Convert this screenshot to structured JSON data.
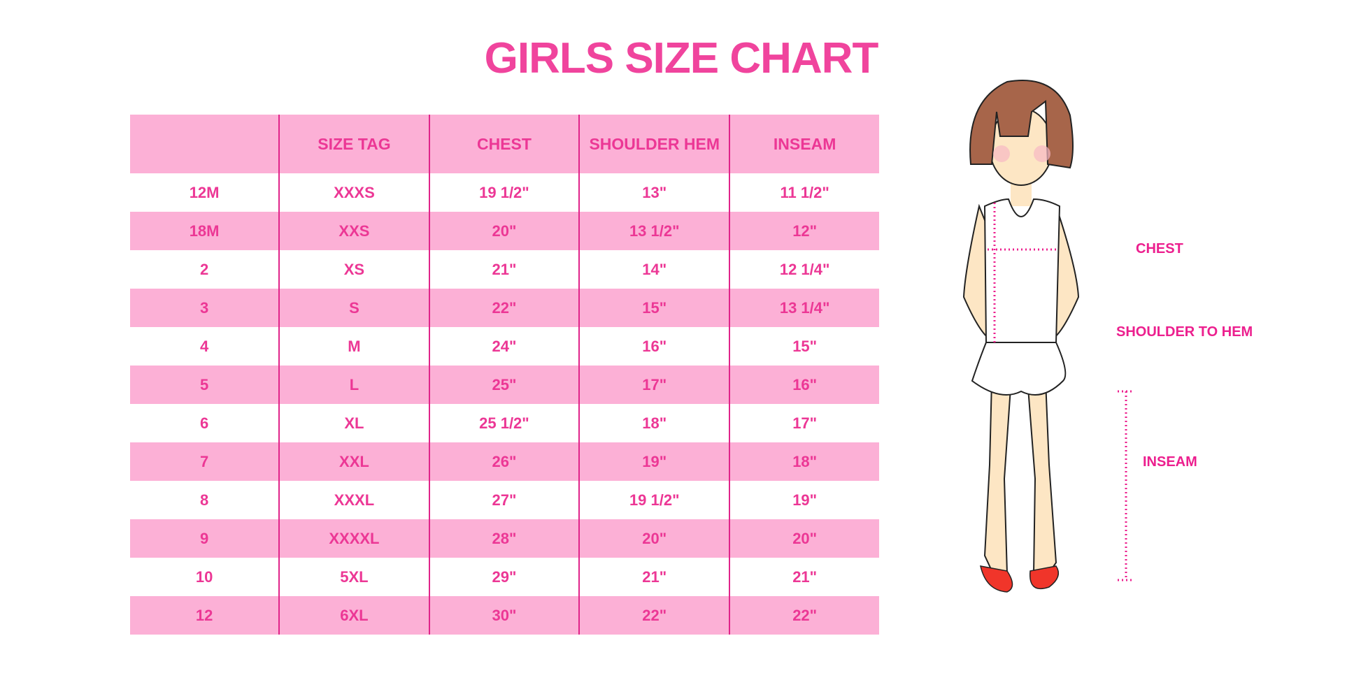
{
  "title": "GIRLS SIZE CHART",
  "table": {
    "headers": [
      "",
      "SIZE TAG",
      "CHEST",
      "SHOULDER HEM",
      "INSEAM"
    ],
    "rows": [
      [
        "12M",
        "XXXS",
        "19 1/2\"",
        "13\"",
        "11 1/2\""
      ],
      [
        "18M",
        "XXS",
        "20\"",
        "13 1/2\"",
        "12\""
      ],
      [
        "2",
        "XS",
        "21\"",
        "14\"",
        "12 1/4\""
      ],
      [
        "3",
        "S",
        "22\"",
        "15\"",
        "13 1/4\""
      ],
      [
        "4",
        "M",
        "24\"",
        "16\"",
        "15\""
      ],
      [
        "5",
        "L",
        "25\"",
        "17\"",
        "16\""
      ],
      [
        "6",
        "XL",
        "25 1/2\"",
        "18\"",
        "17\""
      ],
      [
        "7",
        "XXL",
        "26\"",
        "19\"",
        "18\""
      ],
      [
        "8",
        "XXXL",
        "27\"",
        "19 1/2\"",
        "19\""
      ],
      [
        "9",
        "XXXXL",
        "28\"",
        "20\"",
        "20\""
      ],
      [
        "10",
        "5XL",
        "29\"",
        "21\"",
        "21\""
      ],
      [
        "12",
        "6XL",
        "30\"",
        "22\"",
        "22\""
      ]
    ]
  },
  "figure": {
    "labels": {
      "chest": "CHEST",
      "shoulder_to_hem": "SHOULDER TO HEM",
      "inseam": "INSEAM"
    }
  },
  "colors": {
    "accent": "#f0449d",
    "row_pink": "#fcb0d6",
    "divider": "#e0248a"
  }
}
